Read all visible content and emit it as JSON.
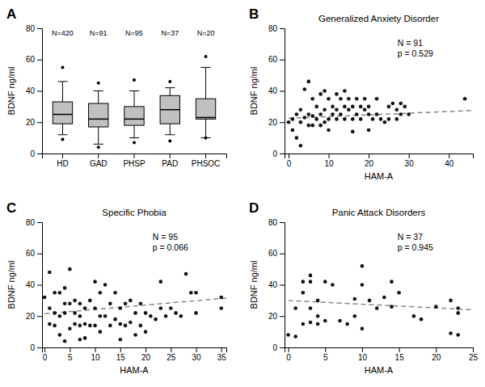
{
  "chart_data": [
    {
      "type": "box",
      "label": "A",
      "ylabel": "BDNF ng/ml",
      "categories": [
        "HD",
        "GAD",
        "PHSP",
        "PAD",
        "PHSOC"
      ],
      "annotations": [
        "N=420",
        "N=91",
        "N=95",
        "N=37",
        "N=20"
      ],
      "ylim": [
        0,
        80
      ],
      "yticks": [
        0,
        20,
        40,
        60,
        80
      ],
      "color": "#c0c0c0",
      "boxes": [
        {
          "q1": 19,
          "median": 25,
          "q3": 33,
          "whislo": 12,
          "whishi": 46,
          "fliers": [
            9,
            55
          ]
        },
        {
          "q1": 17,
          "median": 22,
          "q3": 32,
          "whislo": 6,
          "whishi": 40,
          "fliers": [
            4,
            45
          ]
        },
        {
          "q1": 18,
          "median": 22,
          "q3": 30,
          "whislo": 10,
          "whishi": 40,
          "fliers": [
            7,
            47
          ]
        },
        {
          "q1": 19,
          "median": 28,
          "q3": 37,
          "whislo": 12,
          "whishi": 42,
          "fliers": [
            8,
            46
          ]
        },
        {
          "q1": 22,
          "median": 23,
          "q3": 35,
          "whislo": 10,
          "whishi": 55,
          "fliers": [
            10,
            62
          ]
        }
      ]
    },
    {
      "type": "scatter",
      "label": "B",
      "title": "Generalized Anxiety Disorder",
      "xlabel": "HAM-A",
      "ylabel": "BDNF ng/ml",
      "annotations": [
        "N = 91",
        "p = 0.529"
      ],
      "xlim": [
        -1,
        46
      ],
      "ylim": [
        0,
        80
      ],
      "xticks": [
        0,
        10,
        20,
        30,
        40
      ],
      "yticks": [
        0,
        20,
        40,
        60,
        80
      ],
      "color": "#111111",
      "x": [
        0,
        1,
        1,
        2,
        2,
        3,
        3,
        3,
        4,
        4,
        5,
        5,
        5,
        6,
        6,
        6,
        7,
        7,
        8,
        8,
        8,
        9,
        9,
        9,
        10,
        10,
        10,
        11,
        11,
        12,
        12,
        12,
        13,
        13,
        14,
        14,
        14,
        15,
        15,
        16,
        16,
        16,
        17,
        17,
        18,
        18,
        19,
        19,
        20,
        20,
        20,
        21,
        22,
        22,
        23,
        24,
        25,
        25,
        26,
        27,
        27,
        28,
        28,
        29,
        30,
        44
      ],
      "values": [
        20,
        22,
        15,
        25,
        10,
        28,
        20,
        5,
        41,
        23,
        46,
        25,
        18,
        24,
        35,
        18,
        30,
        22,
        38,
        25,
        18,
        40,
        28,
        20,
        35,
        22,
        15,
        30,
        25,
        38,
        28,
        22,
        35,
        25,
        40,
        30,
        22,
        35,
        28,
        30,
        22,
        14,
        35,
        25,
        30,
        22,
        35,
        28,
        30,
        25,
        15,
        22,
        35,
        25,
        22,
        20,
        30,
        22,
        32,
        28,
        22,
        32,
        25,
        30,
        25,
        35
      ],
      "trend": {
        "x": [
          0,
          46
        ],
        "values": [
          22.5,
          27.5
        ],
        "color": "#888888",
        "line_style": "dashed"
      }
    },
    {
      "type": "scatter",
      "label": "C",
      "title": "Specific Phobia",
      "xlabel": "HAM-A",
      "ylabel": "BDNF ng/ml",
      "annotations": [
        "N = 95",
        "p = 0.066"
      ],
      "xlim": [
        -0.5,
        36
      ],
      "ylim": [
        0,
        80
      ],
      "xticks": [
        0,
        5,
        10,
        15,
        20,
        25,
        30,
        35
      ],
      "yticks": [
        0,
        20,
        40,
        60,
        80
      ],
      "color": "#111111",
      "x": [
        0,
        1,
        1,
        1,
        2,
        2,
        2,
        3,
        3,
        3,
        4,
        4,
        4,
        4,
        5,
        5,
        5,
        6,
        6,
        6,
        7,
        7,
        7,
        7,
        8,
        8,
        8,
        9,
        9,
        10,
        10,
        10,
        11,
        11,
        11,
        12,
        12,
        13,
        13,
        14,
        14,
        15,
        15,
        15,
        16,
        16,
        17,
        17,
        18,
        18,
        19,
        19,
        20,
        20,
        21,
        22,
        23,
        23,
        24,
        25,
        26,
        27,
        28,
        29,
        30,
        30,
        35,
        35
      ],
      "values": [
        32,
        48,
        25,
        15,
        35,
        22,
        14,
        35,
        20,
        8,
        38,
        28,
        22,
        4,
        50,
        28,
        12,
        30,
        22,
        15,
        28,
        20,
        14,
        5,
        25,
        15,
        6,
        30,
        14,
        42,
        25,
        14,
        35,
        20,
        10,
        40,
        20,
        28,
        14,
        35,
        18,
        25,
        15,
        5,
        28,
        14,
        30,
        16,
        22,
        8,
        28,
        14,
        22,
        10,
        20,
        18,
        42,
        25,
        20,
        25,
        22,
        20,
        47,
        35,
        35,
        22,
        32,
        25
      ],
      "trend": {
        "x": [
          0,
          36
        ],
        "values": [
          21.5,
          31.5
        ],
        "color": "#888888",
        "line_style": "dashed"
      }
    },
    {
      "type": "scatter",
      "label": "D",
      "title": "Panic Attack Disorders",
      "xlabel": "HAM-A",
      "ylabel": "BDNF ng/ml",
      "annotations": [
        "N = 37",
        "p = 0.945"
      ],
      "xlim": [
        -0.5,
        25
      ],
      "ylim": [
        0,
        80
      ],
      "xticks": [
        0,
        5,
        10,
        15,
        20,
        25
      ],
      "yticks": [
        0,
        20,
        40,
        60,
        80
      ],
      "color": "#111111",
      "x": [
        0,
        1,
        1,
        2,
        2,
        2,
        3,
        3,
        3,
        3,
        4,
        4,
        4,
        5,
        5,
        6,
        7,
        8,
        9,
        9,
        10,
        10,
        10,
        11,
        12,
        13,
        14,
        14,
        15,
        17,
        18,
        20,
        22,
        22,
        23,
        23,
        23
      ],
      "values": [
        8,
        25,
        7,
        42,
        35,
        15,
        46,
        42,
        25,
        16,
        30,
        20,
        15,
        42,
        17,
        40,
        17,
        15,
        31,
        20,
        52,
        40,
        12,
        30,
        25,
        32,
        42,
        26,
        35,
        20,
        18,
        26,
        30,
        9,
        22,
        25,
        8
      ],
      "trend": {
        "x": [
          0,
          25
        ],
        "values": [
          30.0,
          24.0
        ],
        "color": "#888888",
        "line_style": "dashed"
      }
    }
  ]
}
